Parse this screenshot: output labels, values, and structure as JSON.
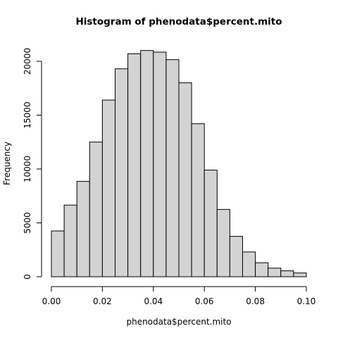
{
  "chart_data": {
    "type": "bar",
    "title": "Histogram of phenodata$percent.mito",
    "xlabel": "phenodata$percent.mito",
    "ylabel": "Frequency",
    "bin_edges": [
      0.0,
      0.005,
      0.01,
      0.015,
      0.02,
      0.025,
      0.03,
      0.035,
      0.04,
      0.045,
      0.05,
      0.055,
      0.06,
      0.065,
      0.07,
      0.075,
      0.08,
      0.085,
      0.09,
      0.095,
      0.1
    ],
    "values": [
      4250,
      6650,
      8850,
      12500,
      16400,
      19300,
      20700,
      21000,
      20850,
      20150,
      18000,
      14200,
      9900,
      6250,
      3750,
      2300,
      1300,
      800,
      550,
      350
    ],
    "xlim": [
      0.0,
      0.1
    ],
    "ylim": [
      0,
      20000
    ],
    "x_ticks": [
      0.0,
      0.02,
      0.04,
      0.06,
      0.08,
      0.1
    ],
    "x_tick_labels": [
      "0.00",
      "0.02",
      "0.04",
      "0.06",
      "0.08",
      "0.10"
    ],
    "y_ticks": [
      0,
      5000,
      10000,
      15000,
      20000
    ],
    "y_tick_labels": [
      "0",
      "5000",
      "10000",
      "15000",
      "20000"
    ],
    "bar_color": "#d3d3d3",
    "edge_color": "#000000",
    "grid": false,
    "legend": "none"
  }
}
